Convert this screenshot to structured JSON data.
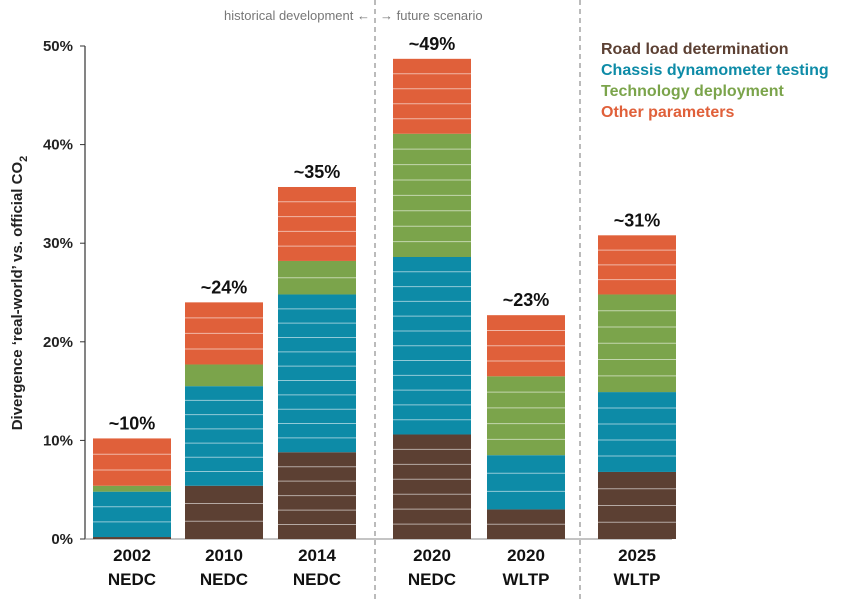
{
  "chart_data": {
    "type": "bar",
    "stacked": true,
    "ylabel": "Divergence ‘real-world’ vs. official CO",
    "ylabel_sub": "2",
    "ylim": [
      0,
      50
    ],
    "yticks": [
      0,
      10,
      20,
      30,
      40,
      50
    ],
    "ytick_labels": [
      "0%",
      "10%",
      "20%",
      "30%",
      "40%",
      "50%"
    ],
    "categories": [
      {
        "year": "2002",
        "cycle": "NEDC"
      },
      {
        "year": "2010",
        "cycle": "NEDC"
      },
      {
        "year": "2014",
        "cycle": "NEDC"
      },
      {
        "year": "2020",
        "cycle": "NEDC"
      },
      {
        "year": "2020",
        "cycle": "WLTP"
      },
      {
        "year": "2025",
        "cycle": "WLTP"
      }
    ],
    "totals": [
      "~10%",
      "~24%",
      "~35%",
      "~49%",
      "~23%",
      "~31%"
    ],
    "series": [
      {
        "name": "Road load determination",
        "color": "#5c4033",
        "values": [
          0.2,
          5.4,
          8.8,
          10.6,
          3.0,
          6.8
        ]
      },
      {
        "name": "Chassis dynamometer testing",
        "color": "#0d8ba7",
        "values": [
          4.6,
          10.1,
          16.0,
          18.0,
          5.5,
          8.1
        ]
      },
      {
        "name": "Technology deployment",
        "color": "#7ba44b",
        "values": [
          0.6,
          2.2,
          3.4,
          12.5,
          8.0,
          9.9
        ]
      },
      {
        "name": "Other parameters",
        "color": "#e0603a",
        "values": [
          4.8,
          6.3,
          7.5,
          7.6,
          6.2,
          6.0
        ]
      }
    ],
    "period_labels": {
      "historical": "historical development",
      "future": "future scenario",
      "arrow_left": "←",
      "arrow_right": "→"
    }
  }
}
